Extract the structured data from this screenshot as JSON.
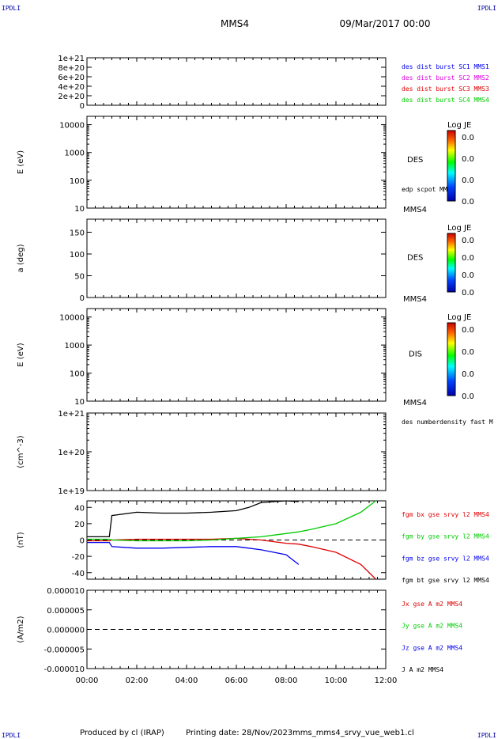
{
  "header": {
    "corner_left": "IPDLI",
    "corner_right": "IPDLI",
    "spacecraft": "MMS4",
    "datetime": "09/Mar/2017 00:00"
  },
  "footer": {
    "produced_by": "Produced by cl (IRAP)",
    "printing_date": "Printing date: 28/Nov/2023",
    "file": "mms_mms4_srvy_vue_web1.cl",
    "corner_left": "IPDLI",
    "corner_right": "IPDLI"
  },
  "colors": {
    "black": "#000000",
    "red": "#dd0000",
    "green": "#00cc00",
    "blue": "#0000ee",
    "magenta": "#dd00dd"
  },
  "chart_data": [
    {
      "type": "line",
      "panel": "burst",
      "ylabel": "",
      "yticks": [
        "1e+21",
        "8e+20",
        "6e+20",
        "4e+20",
        "2e+20",
        "0"
      ],
      "ylim": [
        0,
        1e+21
      ],
      "baseline_dashed": 0,
      "legend": [
        {
          "label": "des dist burst SC1 MMS1",
          "color": "#0000ee"
        },
        {
          "label": "des dist burst SC2 MMS2",
          "color": "#dd00dd"
        },
        {
          "label": "des dist burst SC3 MMS3",
          "color": "#dd0000"
        },
        {
          "label": "des dist burst SC4 MMS4",
          "color": "#00cc00"
        }
      ]
    },
    {
      "type": "heatmap",
      "panel": "des-energy",
      "ylabel": "E (eV)",
      "scale": "log",
      "yticks": [
        "10000",
        "1000",
        "100",
        "10"
      ],
      "ylim": [
        10,
        20000
      ],
      "side_labels": [
        "DES",
        "edp scpot MMS4",
        "MMS4"
      ],
      "colorbar": {
        "title": "Log JE",
        "ticks": [
          "0.0",
          "0.0",
          "0.0",
          "0.0"
        ]
      }
    },
    {
      "type": "heatmap",
      "panel": "des-pitch",
      "ylabel": "a (deg)",
      "yticks": [
        "150",
        "100",
        "50",
        "0"
      ],
      "ylim": [
        0,
        180
      ],
      "side_labels": [
        "DES",
        "MMS4"
      ],
      "colorbar": {
        "title": "Log JE",
        "ticks": [
          "0.0",
          "0.0",
          "0.0",
          "0.0"
        ]
      }
    },
    {
      "type": "heatmap",
      "panel": "dis-energy",
      "ylabel": "E (eV)",
      "scale": "log",
      "yticks": [
        "10000",
        "1000",
        "100",
        "10"
      ],
      "ylim": [
        10,
        20000
      ],
      "side_labels": [
        "DIS",
        "MMS4"
      ],
      "colorbar": {
        "title": "Log JE",
        "ticks": [
          "0.0",
          "0.0",
          "0.0",
          "0.0"
        ]
      }
    },
    {
      "type": "line",
      "panel": "density",
      "ylabel": "(cm^-3)",
      "scale": "log",
      "yticks": [
        "1e+21",
        "1e+20",
        "1e+19"
      ],
      "ylim": [
        1e+19,
        1e+21
      ],
      "legend": [
        {
          "label": "des numberdensity fast M",
          "color": "#000000"
        }
      ]
    },
    {
      "type": "line",
      "panel": "bfield",
      "ylabel": "(nT)",
      "yticks": [
        "40",
        "20",
        "0",
        "-20",
        "-40"
      ],
      "ylim": [
        -48,
        48
      ],
      "baseline_dashed": 0,
      "legend": [
        {
          "label": "fgm bx gse srvy l2 MMS4",
          "color": "#dd0000"
        },
        {
          "label": "fgm by gse srvy l2 MMS4",
          "color": "#00cc00"
        },
        {
          "label": "fgm bz gse srvy l2 MMS4",
          "color": "#0000ee"
        },
        {
          "label": "fgm bt gse srvy l2 MMS4",
          "color": "#000000"
        }
      ],
      "x_hours": [
        0,
        0.9,
        1.0,
        2,
        3,
        4,
        5,
        6,
        6.5,
        7,
        7.5,
        8,
        8.5,
        9,
        10,
        11,
        11.6
      ],
      "series": [
        {
          "name": "fgm bt gse srvy l2 MMS4",
          "color": "#000000",
          "values": [
            4,
            4,
            30,
            34,
            33,
            33,
            34,
            36,
            40,
            46,
            47,
            48,
            47,
            null,
            null,
            null,
            null
          ]
        },
        {
          "name": "fgm bx gse srvy l2 MMS4",
          "color": "#dd0000",
          "values": [
            -1,
            -1,
            0,
            1,
            1,
            1,
            1,
            2,
            1,
            0,
            -2,
            -4,
            -5,
            -8,
            -15,
            -30,
            -48
          ]
        },
        {
          "name": "fgm by gse srvy l2 MMS4",
          "color": "#00cc00",
          "values": [
            1,
            1,
            0,
            -1,
            -1,
            -1,
            0,
            2,
            3,
            4,
            6,
            8,
            10,
            13,
            20,
            34,
            48
          ]
        },
        {
          "name": "fgm bz gse srvy l2 MMS4",
          "color": "#0000ee",
          "values": [
            -3,
            -3,
            -8,
            -10,
            -10,
            -9,
            -8,
            -8,
            -10,
            -12,
            -15,
            -18,
            -30,
            null,
            null,
            null,
            null
          ]
        }
      ]
    },
    {
      "type": "line",
      "panel": "current",
      "ylabel": "(A/m2)",
      "yticks": [
        "0.000010",
        "0.000005",
        "0.000000",
        "-0.000005",
        "-0.000010"
      ],
      "ylim": [
        -1e-05,
        1e-05
      ],
      "baseline_dashed": 0,
      "xticks": [
        "00:00",
        "02:00",
        "04:00",
        "06:00",
        "08:00",
        "10:00",
        "12:00"
      ],
      "xlim": [
        "00:00",
        "12:00"
      ],
      "legend": [
        {
          "label": "Jx gse A m2 MMS4",
          "color": "#dd0000"
        },
        {
          "label": "Jy gse A m2 MMS4",
          "color": "#00cc00"
        },
        {
          "label": "Jz gse A m2 MMS4",
          "color": "#0000ee"
        },
        {
          "label": "J A m2 MMS4",
          "color": "#000000"
        }
      ]
    }
  ]
}
